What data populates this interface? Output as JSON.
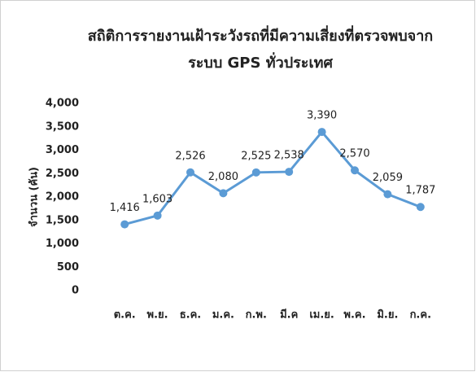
{
  "chart_data": {
    "type": "line",
    "title": [
      "สถิติการรายงานเฝ้าระวังรถที่มีความเสี่ยงที่ตรวจพบจาก",
      "ระบบ GPS ทั่วประเทศ"
    ],
    "y_label": "จำนวน (คัน)",
    "categories": [
      "ต.ค.",
      "พ.ย.",
      "ธ.ค.",
      "ม.ค.",
      "ก.พ.",
      "มี.ค",
      "เม.ย.",
      "พ.ค.",
      "มิ.ย.",
      "ก.ค."
    ],
    "series": [
      {
        "color": "#5b9bd5",
        "values": [
          1416,
          1603,
          2526,
          2080,
          2525,
          2538,
          3390,
          2570,
          2059,
          1787
        ],
        "value_labels": [
          "1,416",
          "1,603",
          "2,526",
          "2,080",
          "2,525",
          "2,538",
          "3,390",
          "2,570",
          "2,059",
          "1,787"
        ]
      }
    ],
    "ylim": [
      0,
      4000
    ],
    "yticks": [
      0,
      500,
      {
        "value": 1000,
        "label": "1,000"
      },
      {
        "value": 1500,
        "label": "1,500"
      },
      {
        "value": 2000,
        "label": "2,000"
      },
      {
        "value": 2500,
        "label": "2,500"
      },
      {
        "value": 3000,
        "label": "3,000"
      },
      {
        "value": 3500,
        "label": "3,500"
      },
      {
        "value": 4000,
        "label": "4,000"
      }
    ],
    "grid": false
  }
}
